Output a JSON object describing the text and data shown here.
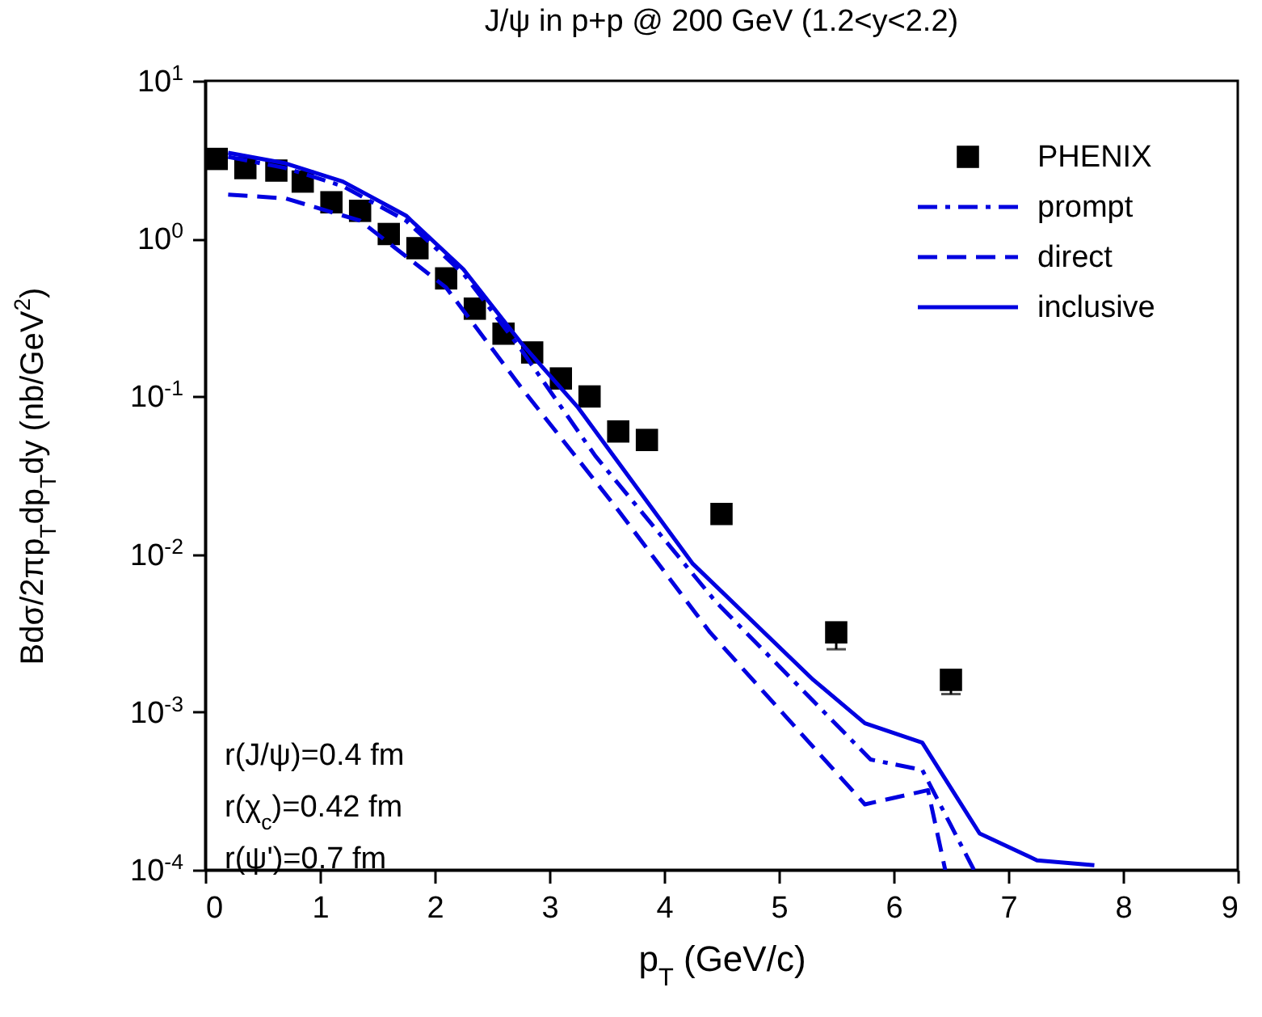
{
  "chart_data": {
    "type": "line",
    "title": "J/ψ in p+p @ 200 GeV (1.2<y<2.2)",
    "xlabel": "p$_{T}$ (GeV/c)",
    "ylabel": "Bdσ/2πp$_{T}$dp$_{T}$dy (nb/GeV$^{2}$)",
    "annotations": [
      "r(J/ψ)=0.4 fm",
      "r(χ$_{c}$)=0.42 fm",
      "r(ψ')=0.7 fm"
    ],
    "log": "y",
    "legend": "top right",
    "xlim": [
      0,
      9
    ],
    "xticks": [
      0,
      1,
      2,
      3,
      4,
      5,
      6,
      7,
      8,
      9
    ],
    "ylim": [
      0.0001,
      10
    ],
    "yticks": [
      {
        "value": 0.0001,
        "label": "10$^{-4}$"
      },
      {
        "value": 0.001,
        "label": "10$^{-3}$"
      },
      {
        "value": 0.01,
        "label": "10$^{-2}$"
      },
      {
        "value": 0.1,
        "label": "10$^{-1}$"
      },
      {
        "value": 1,
        "label": "10$^{0}$"
      },
      {
        "value": 10,
        "label": "10$^{1}$"
      }
    ],
    "series": [
      {
        "name": "PHENIX",
        "type": "scatter",
        "marker": "square",
        "color": "#000000",
        "x": [
          0.1,
          0.35,
          0.62,
          0.85,
          1.1,
          1.35,
          1.6,
          1.85,
          2.1,
          2.35,
          2.6,
          2.85,
          3.1,
          3.35,
          3.6,
          3.85,
          4.5,
          5.5,
          6.5
        ],
        "values": [
          3.2,
          2.8,
          2.7,
          2.3,
          1.7,
          1.5,
          1.07,
          0.87,
          0.56,
          0.36,
          0.25,
          0.19,
          0.13,
          0.1,
          0.06,
          0.053,
          0.018,
          0.0032,
          0.0016
        ],
        "errors": [
          null,
          null,
          null,
          null,
          null,
          null,
          null,
          null,
          null,
          null,
          null,
          null,
          null,
          null,
          null,
          null,
          null,
          [
            0.0025,
            0.0036
          ],
          [
            0.0013,
            0.0018
          ]
        ]
      },
      {
        "name": "prompt",
        "line_style": "dashdot",
        "color": "#0000e0",
        "x": [
          0.2,
          0.7,
          1.2,
          1.75,
          2.25,
          2.75,
          3.4,
          4.45,
          5.05,
          5.8,
          6.25,
          6.7
        ],
        "values": [
          3.3,
          2.8,
          2.15,
          1.3,
          0.6,
          0.2,
          0.042,
          0.005,
          0.0018,
          0.0005,
          0.00043,
          0.0001
        ]
      },
      {
        "name": "direct",
        "line_style": "dashed",
        "color": "#0000e0",
        "x": [
          0.2,
          0.7,
          1.35,
          2.1,
          2.75,
          3.6,
          4.4,
          5.75,
          6.3,
          6.45
        ],
        "values": [
          1.9,
          1.8,
          1.3,
          0.49,
          0.115,
          0.019,
          0.0032,
          0.00026,
          0.00032,
          0.0001
        ]
      },
      {
        "name": "inclusive",
        "line_style": "solid",
        "color": "#0000e0",
        "x": [
          0.2,
          0.7,
          1.2,
          1.75,
          2.25,
          2.75,
          3.25,
          4.25,
          5.3,
          5.75,
          6.25,
          6.75,
          7.25,
          7.75
        ],
        "values": [
          3.5,
          3.0,
          2.3,
          1.4,
          0.64,
          0.22,
          0.085,
          0.0087,
          0.0016,
          0.00085,
          0.00064,
          0.00017,
          0.000115,
          0.000107
        ]
      }
    ]
  }
}
